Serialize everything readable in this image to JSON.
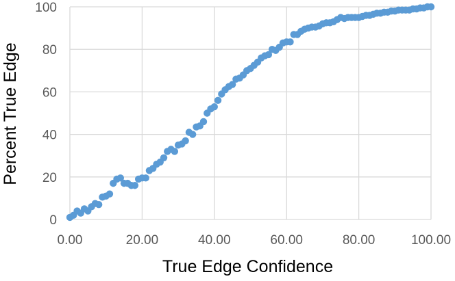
{
  "chart_data": {
    "type": "scatter",
    "xlabel": "True Edge Confidence",
    "ylabel": "Percent True Edge",
    "xlim": [
      0,
      100
    ],
    "ylim": [
      0,
      100
    ],
    "x_ticks": [
      "0.00",
      "20.00",
      "40.00",
      "60.00",
      "80.00",
      "100.00"
    ],
    "y_ticks": [
      "0",
      "20",
      "40",
      "60",
      "80",
      "100"
    ],
    "grid": true,
    "legend": "none",
    "marker_color": "#5b9bd5",
    "series": [
      {
        "x": [
          0,
          1,
          2,
          3,
          4,
          5,
          6,
          7,
          8,
          9,
          10,
          11,
          12,
          13,
          14,
          15,
          16,
          17,
          18,
          19,
          20,
          21,
          22,
          23,
          24,
          25,
          26,
          27,
          28,
          29,
          30,
          31,
          32,
          33,
          34,
          35,
          36,
          37,
          38,
          39,
          40,
          41,
          42,
          43,
          44,
          45,
          46,
          47,
          48,
          49,
          50,
          51,
          52,
          53,
          54,
          55,
          56,
          57,
          58,
          59,
          60,
          61,
          62,
          63,
          64,
          65,
          66,
          67,
          68,
          69,
          70,
          71,
          72,
          73,
          74,
          75,
          76,
          77,
          78,
          79,
          80,
          81,
          82,
          83,
          84,
          85,
          86,
          87,
          88,
          89,
          90,
          91,
          92,
          93,
          94,
          95,
          96,
          97,
          98,
          99,
          100
        ],
        "y": [
          1,
          2,
          4,
          3,
          5,
          4,
          6,
          7.5,
          7,
          10.5,
          11,
          12,
          17,
          19,
          19.5,
          17,
          17,
          16,
          16,
          19,
          19.5,
          19.5,
          23,
          24,
          26,
          27,
          29,
          32,
          33,
          32,
          35,
          35.5,
          37,
          41,
          40,
          43.5,
          44,
          46,
          50,
          52,
          53,
          56,
          59,
          61,
          62.5,
          63.5,
          66,
          66.5,
          68,
          70,
          71,
          72.5,
          74,
          76,
          77,
          77.5,
          80,
          79.5,
          81,
          83,
          83.5,
          83.5,
          87,
          87,
          88.5,
          89.5,
          90,
          90.5,
          90.5,
          91,
          92,
          92.5,
          92.5,
          93,
          94,
          95,
          94.5,
          95,
          95,
          95,
          95,
          95.5,
          96,
          96,
          96.5,
          97,
          97,
          97.5,
          97.5,
          98,
          98,
          98.5,
          98.5,
          98.5,
          98.5,
          99,
          99,
          99.5,
          99.5,
          100,
          100
        ]
      }
    ]
  }
}
